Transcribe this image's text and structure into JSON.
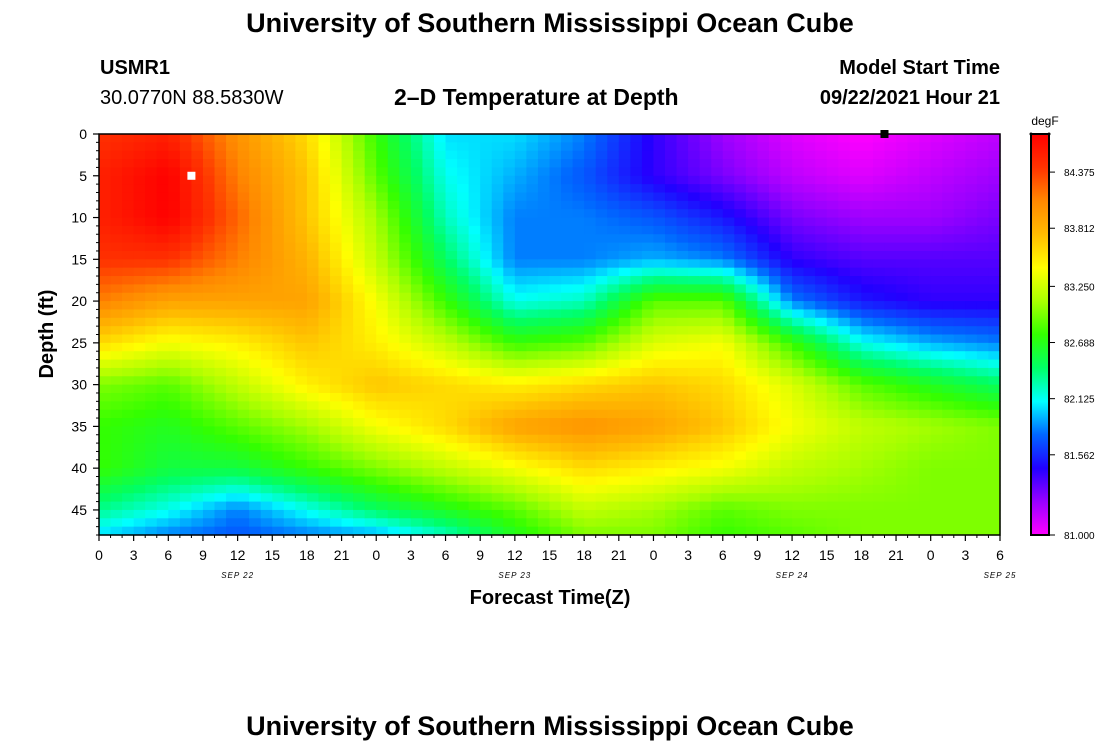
{
  "page": {
    "title_top": "University of Southern Mississippi Ocean Cube",
    "title_bottom": "University of Southern Mississippi Ocean Cube",
    "station_id": "USMR1",
    "station_coords": "30.0770N  88.5830W",
    "plot_title": "2–D Temperature at Depth",
    "model_start_label": "Model Start Time",
    "model_start_value": "09/22/2021 Hour 21"
  },
  "chart_data": {
    "type": "heatmap",
    "title": "2-D Temperature at Depth",
    "xlabel": "Forecast Time(Z)",
    "ylabel": "Depth (ft)",
    "x_tick_labels": [
      "0",
      "3",
      "6",
      "9",
      "12",
      "15",
      "18",
      "21",
      "0",
      "3",
      "6",
      "9",
      "12",
      "15",
      "18",
      "21",
      "0",
      "3",
      "6",
      "9",
      "12",
      "15",
      "18",
      "21",
      "0",
      "3",
      "6"
    ],
    "date_labels": [
      {
        "label": "SEP 22",
        "hour": 12
      },
      {
        "label": "SEP 23",
        "hour": 36
      },
      {
        "label": "SEP 24",
        "hour": 60
      },
      {
        "label": "SEP 25",
        "hour": 78
      }
    ],
    "xlim_hours": [
      0,
      78
    ],
    "y_ticks": [
      0,
      5,
      10,
      15,
      20,
      25,
      30,
      35,
      40,
      45
    ],
    "ylim": [
      0,
      48
    ],
    "y_inverted": true,
    "colorbar": {
      "unit": "degF",
      "tick_labels": [
        "84.375",
        "83.812",
        "83.250",
        "82.688",
        "82.125",
        "81.562",
        "81.000"
      ],
      "min": 81.0,
      "max": 84.8,
      "colors": [
        "#ff00ff",
        "#9900ff",
        "#2200ff",
        "#0066ff",
        "#00ffff",
        "#00ff66",
        "#33ff00",
        "#aaff00",
        "#ffff00",
        "#ffbb00",
        "#ff8800",
        "#ff3300",
        "#ff0000"
      ]
    },
    "markers": [
      {
        "name": "white-square-marker",
        "hour": 8,
        "depth": 5,
        "color": "#ffffff"
      },
      {
        "name": "black-square-marker",
        "hour": 68,
        "depth": 0,
        "color": "#000000"
      }
    ],
    "temperature_grid": {
      "hours": [
        0,
        6,
        12,
        18,
        24,
        30,
        36,
        42,
        48,
        54,
        60,
        66,
        72,
        78
      ],
      "depths": [
        0,
        5,
        10,
        15,
        20,
        25,
        30,
        35,
        40,
        45,
        48
      ],
      "values_degF": [
        [
          84.5,
          84.6,
          84.1,
          83.7,
          82.9,
          82.2,
          82.2,
          82.0,
          81.6,
          81.3,
          81.1,
          81.0,
          81.1,
          81.2
        ],
        [
          84.6,
          84.8,
          84.2,
          83.8,
          83.0,
          82.3,
          82.1,
          81.9,
          81.6,
          81.4,
          81.2,
          81.1,
          81.2,
          81.3
        ],
        [
          84.6,
          84.8,
          84.3,
          83.8,
          83.2,
          82.4,
          82.0,
          82.0,
          81.9,
          81.7,
          81.4,
          81.3,
          81.3,
          81.4
        ],
        [
          84.5,
          84.5,
          84.2,
          83.9,
          83.3,
          82.6,
          82.0,
          82.0,
          82.1,
          82.0,
          81.6,
          81.5,
          81.5,
          81.5
        ],
        [
          84.2,
          84.0,
          84.0,
          84.0,
          83.5,
          82.9,
          82.3,
          82.4,
          83.0,
          83.0,
          82.0,
          81.7,
          81.6,
          81.6
        ],
        [
          83.7,
          83.5,
          83.6,
          83.8,
          83.6,
          83.3,
          82.9,
          83.0,
          83.4,
          83.5,
          82.9,
          82.3,
          82.1,
          82.0
        ],
        [
          83.1,
          83.0,
          83.3,
          83.6,
          83.8,
          83.7,
          83.6,
          83.7,
          83.8,
          83.7,
          83.4,
          83.0,
          82.8,
          82.6
        ],
        [
          82.9,
          82.8,
          83.0,
          83.2,
          83.5,
          83.7,
          84.0,
          84.1,
          84.0,
          83.8,
          83.5,
          83.3,
          83.2,
          83.1
        ],
        [
          82.9,
          82.7,
          82.7,
          82.9,
          83.1,
          83.3,
          83.5,
          83.7,
          83.6,
          83.5,
          83.3,
          83.2,
          83.1,
          83.1
        ],
        [
          82.5,
          82.3,
          82.0,
          82.3,
          82.6,
          82.8,
          83.0,
          83.3,
          83.2,
          83.0,
          83.1,
          83.1,
          83.1,
          83.1
        ],
        [
          82.2,
          82.0,
          81.9,
          82.0,
          82.1,
          82.4,
          82.8,
          83.1,
          83.1,
          82.9,
          83.0,
          83.1,
          83.1,
          83.1
        ]
      ]
    }
  }
}
